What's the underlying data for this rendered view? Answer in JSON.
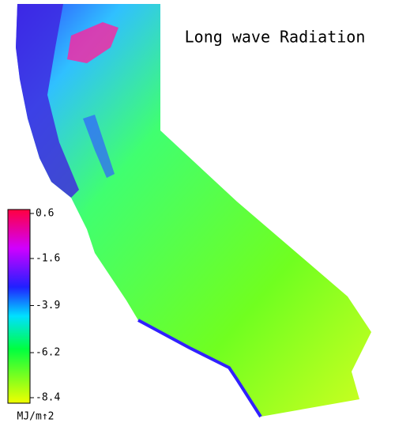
{
  "title": "Long wave Radiation",
  "colorbar": {
    "lim": [
      -8.4,
      0.6
    ],
    "ticks": [
      0.6,
      -1.6,
      -3.9,
      -6.2,
      -8.4
    ],
    "unit": "MJ/m↑2"
  }
}
